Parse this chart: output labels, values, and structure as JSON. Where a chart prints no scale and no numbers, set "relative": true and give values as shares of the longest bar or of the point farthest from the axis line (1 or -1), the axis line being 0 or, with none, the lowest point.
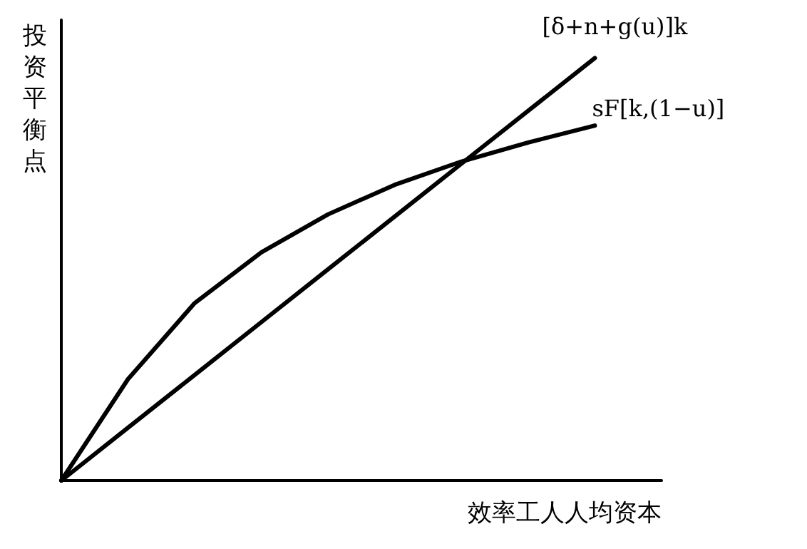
{
  "chart_data": {
    "type": "line",
    "relative": true,
    "xlabel": "效率工人人均资本",
    "ylabel": "投资平衡点",
    "categories": [
      null,
      null,
      null,
      null,
      null,
      null,
      null,
      null,
      null,
      null
    ],
    "series": [
      {
        "name": "[δ+n+g(u)]k",
        "color": "#000000",
        "values": [
          0,
          0.125,
          0.25,
          0.375,
          0.5,
          0.625,
          0.75,
          0.875,
          1.0,
          null
        ]
      },
      {
        "name": "sF[k,(1−u)]",
        "color": "#000000",
        "values": [
          0,
          0.24,
          0.42,
          0.54,
          0.63,
          0.7,
          0.755,
          0.8,
          0.84,
          null
        ]
      }
    ],
    "legend": false,
    "grid": false,
    "marker": "none",
    "line_style": "solid"
  }
}
